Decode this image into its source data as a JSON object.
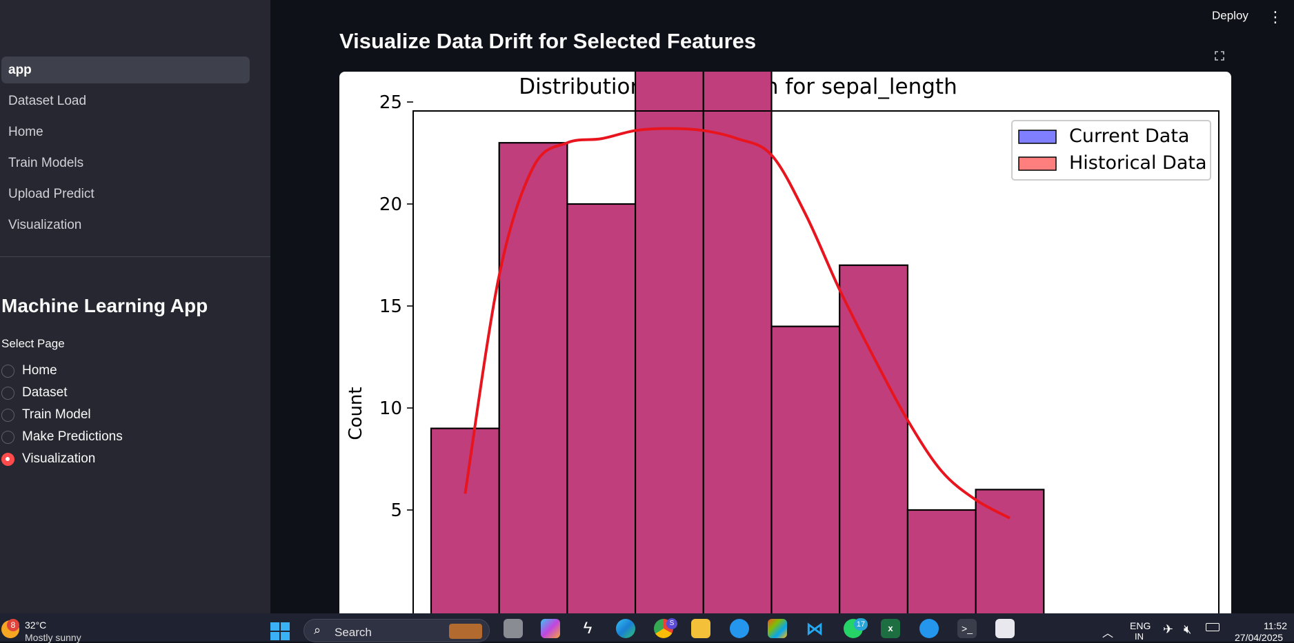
{
  "sidebar": {
    "nav_items": [
      {
        "label": "app",
        "active": true
      },
      {
        "label": "Dataset Load",
        "active": false
      },
      {
        "label": "Home",
        "active": false
      },
      {
        "label": "Train Models",
        "active": false
      },
      {
        "label": "Upload Predict",
        "active": false
      },
      {
        "label": "Visualization",
        "active": false
      }
    ],
    "app_title": "Machine Learning App",
    "select_label": "Select Page",
    "radio_options": [
      {
        "label": "Home",
        "checked": false
      },
      {
        "label": "Dataset",
        "checked": false
      },
      {
        "label": "Train Model",
        "checked": false
      },
      {
        "label": "Make Predictions",
        "checked": false
      },
      {
        "label": "Visualization",
        "checked": true
      }
    ]
  },
  "header": {
    "deploy_label": "Deploy",
    "menu_icon": "kebab-menu-icon"
  },
  "main": {
    "heading": "Visualize Data Drift for Selected Features",
    "fullscreen_icon": "fullscreen-icon"
  },
  "chart_data": {
    "type": "bar",
    "title": "Distribution Comparison for sepal_length",
    "xlabel": "",
    "ylabel": "Count",
    "yticks": [
      5,
      10,
      15,
      20,
      25
    ],
    "ylim_visible": [
      4.7,
      29.4
    ],
    "bin_values": [
      9,
      23,
      20,
      28,
      28,
      14,
      17,
      5,
      6
    ],
    "bar_color": "#c13e7d",
    "legend_position": "top-right",
    "series": [
      {
        "name": "Current Data",
        "color": "#7f7fff"
      },
      {
        "name": "Historical Data",
        "color": "#ff7f7f"
      }
    ],
    "kde": {
      "color": "#e8141e",
      "points": [
        [
          0.5,
          5.8
        ],
        [
          1.0,
          16.5
        ],
        [
          1.5,
          21.8
        ],
        [
          2.0,
          23.0
        ],
        [
          2.5,
          23.2
        ],
        [
          3.0,
          23.6
        ],
        [
          3.5,
          23.7
        ],
        [
          4.0,
          23.6
        ],
        [
          4.5,
          23.2
        ],
        [
          5.0,
          22.4
        ],
        [
          5.5,
          19.5
        ],
        [
          6.0,
          15.8
        ],
        [
          6.5,
          12.5
        ],
        [
          7.0,
          9.4
        ],
        [
          7.5,
          6.9
        ],
        [
          8.0,
          5.5
        ],
        [
          8.5,
          4.6
        ]
      ]
    }
  },
  "taskbar": {
    "weather_temp": "32°C",
    "weather_desc": "Mostly sunny",
    "weather_badge": "8",
    "search_placeholder": "Search",
    "chrome_badge": "S",
    "whatsapp_badge": "17",
    "lang": "ENG",
    "lang_region": "IN",
    "time": "11:52",
    "date": "27/04/2025"
  }
}
